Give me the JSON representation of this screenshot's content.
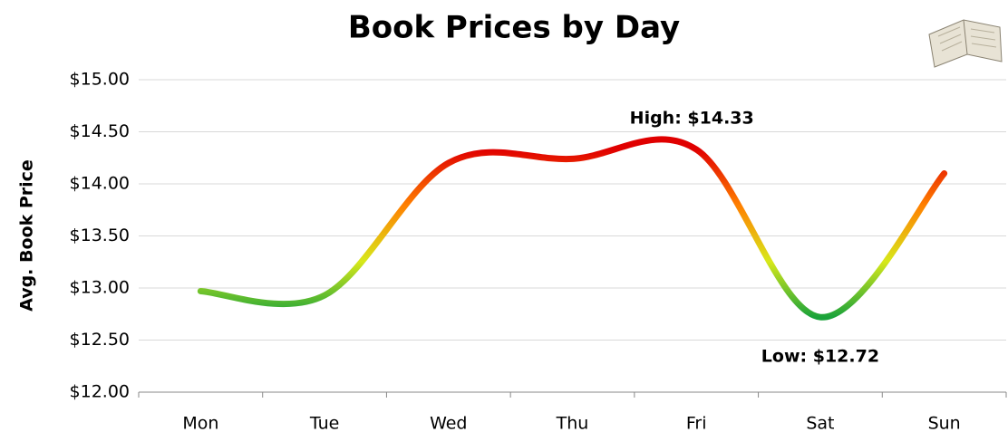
{
  "chart_data": {
    "type": "line",
    "title": "Book Prices by Day",
    "y_label": "Avg. Book Price",
    "categories": [
      "Mon",
      "Tue",
      "Wed",
      "Thu",
      "Fri",
      "Sat",
      "Sun"
    ],
    "values": [
      12.97,
      12.93,
      14.2,
      14.24,
      14.33,
      12.72,
      14.1
    ],
    "high_label": "High: $14.33",
    "low_label": "Low: $12.72",
    "color_scale": [
      "#1aa33a",
      "#d8e81a",
      "#ff8000",
      "#e00000"
    ],
    "ylim": [
      12,
      15
    ],
    "yticks": [
      {
        "value": 12,
        "label": "$12.00"
      },
      {
        "value": 12.5,
        "label": "$12.50"
      },
      {
        "value": 13,
        "label": "$13.00"
      },
      {
        "value": 13.5,
        "label": "$13.50"
      },
      {
        "value": 14,
        "label": "$14.00"
      },
      {
        "value": 14.5,
        "label": "$14.50"
      },
      {
        "value": 15,
        "label": "$15.00"
      }
    ],
    "grid": true
  }
}
